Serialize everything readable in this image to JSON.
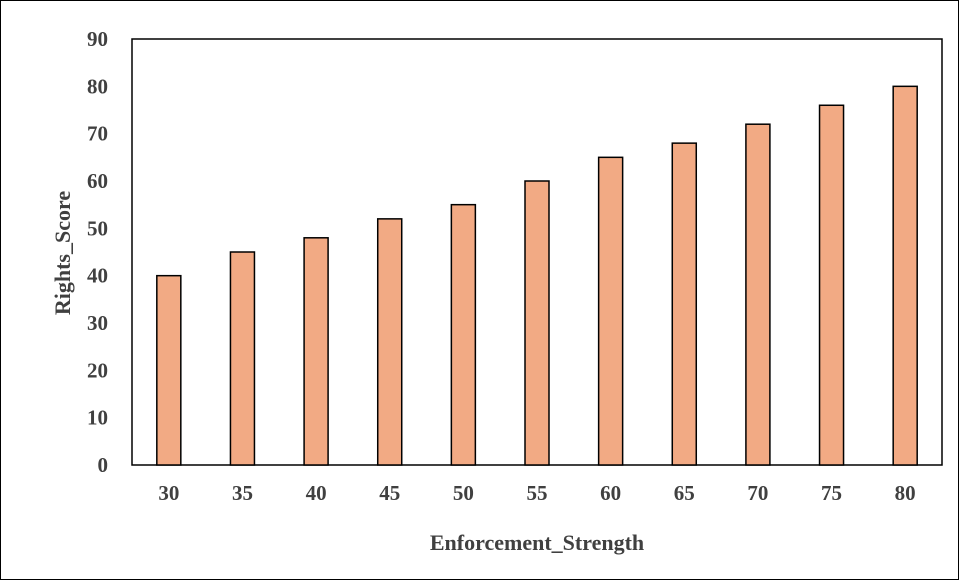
{
  "chart_data": {
    "type": "bar",
    "categories": [
      "30",
      "35",
      "40",
      "45",
      "50",
      "55",
      "60",
      "65",
      "70",
      "75",
      "80"
    ],
    "values": [
      40,
      45,
      48,
      52,
      55,
      60,
      65,
      68,
      72,
      76,
      80
    ],
    "xlabel": "Enforcement_Strength",
    "ylabel": "Rights_Score",
    "ylim": [
      0,
      90
    ],
    "yticks": [
      0,
      10,
      20,
      30,
      40,
      50,
      60,
      70,
      80,
      90
    ],
    "grid": false,
    "legend": "none",
    "colors": {
      "bar_fill": "#F2AA84",
      "bar_stroke": "#000000",
      "axis": "#000000",
      "text": "#404040"
    }
  }
}
